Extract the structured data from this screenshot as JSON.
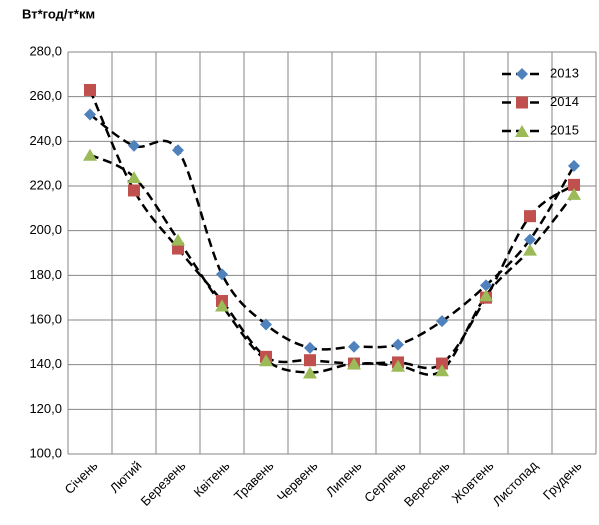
{
  "chart_data": {
    "type": "line",
    "title": "Вт*год/т*км",
    "categories": [
      "Січень",
      "Лютий",
      "Березень",
      "Квітень",
      "Травень",
      "Червень",
      "Липень",
      "Серпень",
      "Вересень",
      "Жовтень",
      "Листопад",
      "Грудень"
    ],
    "series": [
      {
        "name": "2013",
        "color": "#4f81bd",
        "marker": "diamond",
        "values": [
          252,
          238,
          236,
          180.5,
          158,
          147.5,
          148,
          149,
          159.5,
          175.5,
          196,
          229
        ]
      },
      {
        "name": "2014",
        "color": "#c0504d",
        "marker": "square",
        "values": [
          263,
          218,
          192,
          168.5,
          143.5,
          142,
          140.5,
          141,
          140.5,
          170,
          206.5,
          220.5
        ]
      },
      {
        "name": "2015",
        "color": "#9bbb59",
        "marker": "triangle",
        "values": [
          234,
          224,
          196,
          166.5,
          142,
          136.5,
          140.5,
          139.5,
          137.5,
          171,
          191.5,
          216.5
        ]
      }
    ],
    "ylim": [
      100,
      280
    ],
    "yticks": [
      {
        "value": 100,
        "label": "100,0"
      },
      {
        "value": 120,
        "label": "120,0"
      },
      {
        "value": 140,
        "label": "140,0"
      },
      {
        "value": 160,
        "label": "160,0"
      },
      {
        "value": 180,
        "label": "180,0"
      },
      {
        "value": 200,
        "label": "200,0"
      },
      {
        "value": 220,
        "label": "220,0"
      },
      {
        "value": 240,
        "label": "240,0"
      },
      {
        "value": 260,
        "label": "260,0"
      },
      {
        "value": 280,
        "label": "280,0"
      }
    ],
    "grid": true,
    "legend": "top-right",
    "line_color": "#000000",
    "line_style": "dashed"
  }
}
